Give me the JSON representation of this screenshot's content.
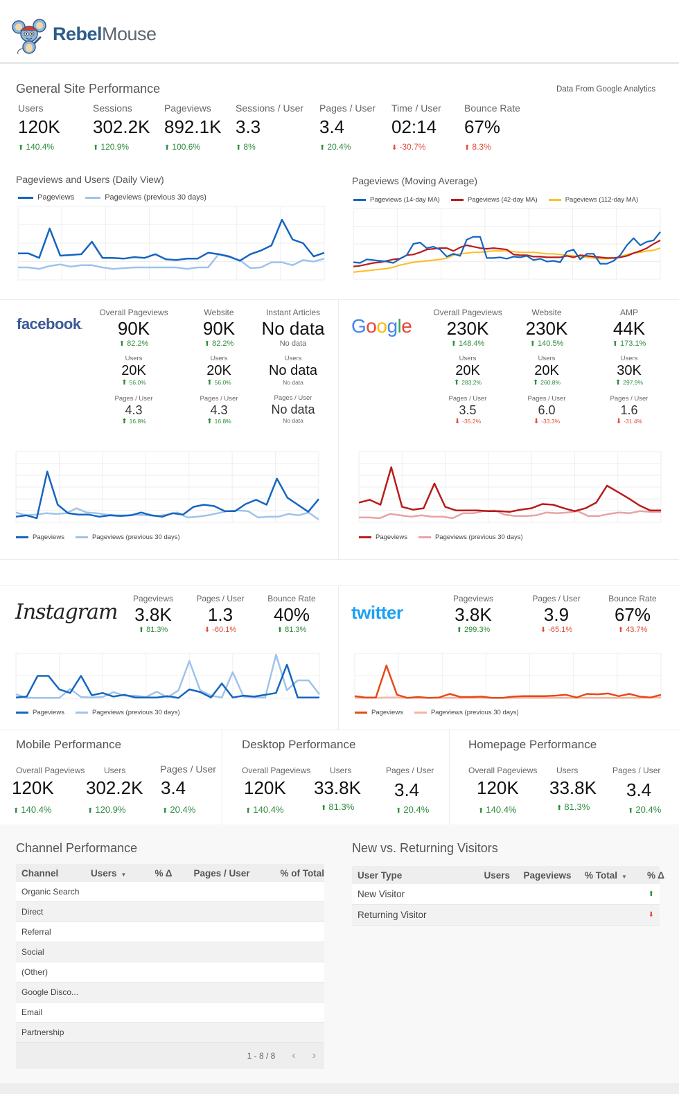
{
  "brand": {
    "name_bold": "Rebel",
    "name_light": "Mouse"
  },
  "general": {
    "title": "General Site Performance",
    "source_note": "Data From Google Analytics",
    "kpis": [
      {
        "label": "Users",
        "value": "120K",
        "delta": "140.4%",
        "dir": "up",
        "tone": "good"
      },
      {
        "label": "Sessions",
        "value": "302.2K",
        "delta": "120.9%",
        "dir": "up",
        "tone": "good"
      },
      {
        "label": "Pageviews",
        "value": "892.1K",
        "delta": "100.6%",
        "dir": "up",
        "tone": "good"
      },
      {
        "label": "Sessions / User",
        "value": "3.3",
        "delta": "8%",
        "dir": "up",
        "tone": "good"
      },
      {
        "label": "Pages / User",
        "value": "3.4",
        "delta": "20.4%",
        "dir": "up",
        "tone": "good"
      },
      {
        "label": "Time / User",
        "value": "02:14",
        "delta": "-30.7%",
        "dir": "down",
        "tone": "bad"
      },
      {
        "label": "Bounce Rate",
        "value": "67%",
        "delta": "8.3%",
        "dir": "up",
        "tone": "bad"
      }
    ]
  },
  "colors": {
    "pv_blue": "#1565c0",
    "pv_blue_prev": "#9fc3ea",
    "ma14": "#1565c0",
    "ma42": "#b71c1c",
    "ma112": "#fbc02d",
    "google_red": "#b71c1c",
    "google_red_prev": "#e8a3a3",
    "twitter_orange": "#e64a19",
    "twitter_orange_prev": "#f5b5a0",
    "good": "#2e8b3c",
    "bad": "#e24b3a"
  },
  "chart_data": [
    {
      "id": "daily",
      "type": "line",
      "title": "Pageviews  and Users (Daily View)",
      "legend": "top-left",
      "grid": true,
      "ylim": [
        0,
        100
      ],
      "series": [
        {
          "name": "Pageviews",
          "color_key": "pv_blue",
          "values": [
            36,
            36,
            30,
            70,
            33,
            34,
            35,
            52,
            30,
            30,
            29,
            31,
            30,
            35,
            28,
            27,
            29,
            29,
            37,
            35,
            32,
            26,
            35,
            40,
            47,
            82,
            55,
            50,
            32,
            37
          ]
        },
        {
          "name": "Pageviews (previous 30 days)",
          "color_key": "pv_blue_prev",
          "values": [
            17,
            17,
            15,
            19,
            21,
            18,
            20,
            20,
            17,
            15,
            16,
            17,
            17,
            17,
            17,
            17,
            15,
            17,
            17,
            35,
            31,
            27,
            16,
            17,
            24,
            24,
            20,
            27,
            25,
            29
          ]
        }
      ]
    },
    {
      "id": "moving-average",
      "type": "line",
      "title": "Pageviews (Moving Average)",
      "legend": "top-left",
      "grid": true,
      "ylim": [
        0,
        100
      ],
      "series": [
        {
          "name": "Pageviews (14-day MA)",
          "color_key": "ma14",
          "values": [
            24,
            23,
            28,
            27,
            26,
            25,
            23,
            29,
            34,
            50,
            52,
            44,
            46,
            42,
            32,
            36,
            33,
            56,
            60,
            60,
            30,
            30,
            31,
            29,
            32,
            31,
            33,
            27,
            29,
            25,
            26,
            24,
            39,
            42,
            28,
            36,
            36,
            22,
            22,
            26,
            34,
            48,
            58,
            48,
            53,
            55,
            67
          ]
        },
        {
          "name": "Pageviews (42-day MA)",
          "color_key": "ma42",
          "values": [
            18,
            19,
            21,
            23,
            24,
            26,
            28,
            29,
            34,
            35,
            38,
            42,
            43,
            44,
            44,
            40,
            45,
            48,
            46,
            44,
            43,
            44,
            43,
            42,
            35,
            34,
            34,
            32,
            32,
            31,
            31,
            31,
            33,
            31,
            34,
            33,
            32,
            31,
            30,
            30,
            31,
            33,
            37,
            40,
            44,
            50,
            55
          ]
        },
        {
          "name": "Pageviews (112-day MA)",
          "color_key": "ma112",
          "values": [
            10,
            11,
            12,
            13,
            14,
            15,
            17,
            20,
            22,
            24,
            25,
            26,
            27,
            28,
            30,
            34,
            36,
            37,
            38,
            38,
            39,
            40,
            40,
            40,
            39,
            38,
            38,
            38,
            37,
            36,
            36,
            35,
            34,
            33,
            32,
            31,
            30,
            29,
            29,
            30,
            32,
            35,
            37,
            38,
            40,
            41,
            44
          ]
        }
      ]
    },
    {
      "id": "facebook",
      "type": "line",
      "legend": "bottom-left",
      "grid": true,
      "ylim": [
        0,
        100
      ],
      "series": [
        {
          "name": "Pageviews",
          "color_key": "pv_blue",
          "values": [
            8,
            10,
            6,
            72,
            25,
            13,
            11,
            11,
            8,
            10,
            9,
            10,
            14,
            10,
            8,
            13,
            11,
            22,
            25,
            23,
            16,
            16,
            26,
            32,
            25,
            62,
            35,
            25,
            15,
            33
          ]
        },
        {
          "name": "Pageviews (previous 30 days)",
          "color_key": "pv_blue_prev",
          "values": [
            14,
            10,
            11,
            13,
            12,
            13,
            20,
            14,
            13,
            11,
            10,
            10,
            11,
            10,
            9,
            11,
            14,
            7,
            8,
            10,
            13,
            16,
            17,
            16,
            7,
            8,
            8,
            12,
            10,
            14,
            4
          ]
        }
      ]
    },
    {
      "id": "google",
      "type": "line",
      "legend": "bottom-left",
      "grid": true,
      "ylim": [
        0,
        100
      ],
      "series": [
        {
          "name": "Pageviews",
          "color_key": "google_red",
          "values": [
            28,
            32,
            25,
            78,
            22,
            18,
            20,
            55,
            22,
            17,
            17,
            17,
            16,
            16,
            15,
            18,
            20,
            26,
            25,
            20,
            16,
            20,
            28,
            52,
            43,
            34,
            24,
            17,
            17
          ]
        },
        {
          "name": "Pageviews (previous 30 days)",
          "color_key": "google_red_prev",
          "values": [
            7,
            7,
            6,
            12,
            10,
            8,
            10,
            8,
            8,
            6,
            13,
            13,
            16,
            17,
            11,
            9,
            9,
            10,
            14,
            13,
            14,
            16,
            9,
            9,
            12,
            14,
            13,
            16,
            15,
            15
          ]
        }
      ]
    },
    {
      "id": "instagram",
      "type": "line",
      "title": "",
      "legend": "bottom-left",
      "grid": true,
      "ylim": [
        0,
        100
      ],
      "series": [
        {
          "name": "Pageviews",
          "color_key": "pv_blue",
          "values": [
            2,
            4,
            50,
            50,
            20,
            12,
            50,
            7,
            12,
            4,
            8,
            2,
            2,
            2,
            5,
            1,
            20,
            14,
            2,
            33,
            2,
            6,
            4,
            8,
            12,
            75,
            2,
            2,
            2
          ]
        },
        {
          "name": "Pageviews (previous 30 days)",
          "color_key": "pv_blue_prev",
          "values": [
            9,
            1,
            1,
            1,
            1,
            21,
            3,
            2,
            3,
            14,
            6,
            6,
            3,
            15,
            2,
            18,
            83,
            18,
            6,
            2,
            58,
            4,
            2,
            2,
            97,
            18,
            40,
            40,
            9
          ]
        }
      ]
    },
    {
      "id": "twitter",
      "type": "line",
      "legend": "bottom-left",
      "grid": true,
      "ylim": [
        0,
        100
      ],
      "series": [
        {
          "name": "Pageviews",
          "color_key": "twitter_orange",
          "values": [
            5,
            2,
            2,
            73,
            8,
            1,
            3,
            1,
            2,
            10,
            3,
            3,
            4,
            1,
            1,
            4,
            5,
            5,
            5,
            6,
            8,
            2,
            10,
            9,
            11,
            5,
            10,
            4,
            2,
            8
          ]
        },
        {
          "name": "Pageviews (previous 30 days)",
          "color_key": "twitter_orange_prev",
          "values": [
            1,
            1,
            1,
            2,
            2,
            1,
            1,
            1,
            1,
            1,
            1,
            1,
            1,
            1,
            1,
            1,
            1,
            1,
            1,
            1,
            1,
            1,
            1,
            1,
            1,
            1,
            1,
            1,
            2,
            2
          ]
        }
      ]
    }
  ],
  "facebook": {
    "brand": "facebook",
    "columns": [
      {
        "label": "Overall Pageviews",
        "value": "90K",
        "delta": "82.2%",
        "dir": "up",
        "tone": "good",
        "users_label": "Users",
        "users": "20K",
        "users_delta": "56.0%",
        "users_dir": "up",
        "users_tone": "good",
        "ppu_label": "Pages / User",
        "ppu": "4.3",
        "ppu_delta": "16.8%",
        "ppu_dir": "up",
        "ppu_tone": "good"
      },
      {
        "label": "Website",
        "value": "90K",
        "delta": "82.2%",
        "dir": "up",
        "tone": "good",
        "users_label": "Users",
        "users": "20K",
        "users_delta": "56.0%",
        "users_dir": "up",
        "users_tone": "good",
        "ppu_label": "Pages / User",
        "ppu": "4.3",
        "ppu_delta": "16.8%",
        "ppu_dir": "up",
        "ppu_tone": "good"
      },
      {
        "label": "Instant Articles",
        "value": "No data",
        "delta": "No data",
        "dir": "none",
        "tone": "none",
        "users_label": "Users",
        "users": "No data",
        "users_delta": "No data",
        "users_dir": "none",
        "users_tone": "none",
        "ppu_label": "Pages / User",
        "ppu": "No data",
        "ppu_delta": "No data",
        "ppu_dir": "none",
        "ppu_tone": "none"
      }
    ],
    "legend": [
      "Pageviews",
      "Pageviews (previous 30 days)"
    ]
  },
  "google": {
    "brand": "Google",
    "columns": [
      {
        "label": "Overall Pageviews",
        "value": "230K",
        "delta": "148.4%",
        "dir": "up",
        "tone": "good",
        "users_label": "Users",
        "users": "20K",
        "users_delta": "283.2%",
        "users_dir": "up",
        "users_tone": "good",
        "ppu_label": "Pages / User",
        "ppu": "3.5",
        "ppu_delta": "-35.2%",
        "ppu_dir": "down",
        "ppu_tone": "bad"
      },
      {
        "label": "Website",
        "value": "230K",
        "delta": "140.5%",
        "dir": "up",
        "tone": "good",
        "users_label": "Users",
        "users": "20K",
        "users_delta": "260.8%",
        "users_dir": "up",
        "users_tone": "good",
        "ppu_label": "Pages / User",
        "ppu": "6.0",
        "ppu_delta": "-33.3%",
        "ppu_dir": "down",
        "ppu_tone": "bad"
      },
      {
        "label": "AMP",
        "value": "44K",
        "delta": "173.1%",
        "dir": "up",
        "tone": "good",
        "users_label": "Users",
        "users": "30K",
        "users_delta": "297.9%",
        "users_dir": "up",
        "users_tone": "good",
        "ppu_label": "Pages / User",
        "ppu": "1.6",
        "ppu_delta": "-31.4%",
        "ppu_dir": "down",
        "ppu_tone": "bad"
      }
    ],
    "legend": [
      "Pageviews",
      "Pageviews (previous 30 days)"
    ]
  },
  "instagram": {
    "brand": "Instagram",
    "kpis": [
      {
        "label": "Pageviews",
        "value": "3.8K",
        "delta": "81.3%",
        "dir": "up",
        "tone": "good"
      },
      {
        "label": "Pages / User",
        "value": "1.3",
        "delta": "-60.1%",
        "dir": "down",
        "tone": "bad"
      },
      {
        "label": "Bounce Rate",
        "value": "40%",
        "delta": "81.3%",
        "dir": "up",
        "tone": "good"
      }
    ],
    "legend": [
      "Pageviews",
      "Pageviews (previous 30 days)"
    ]
  },
  "twitter": {
    "brand": "twitter",
    "kpis": [
      {
        "label": "Pageviews",
        "value": "3.8K",
        "delta": "299.3%",
        "dir": "up",
        "tone": "good"
      },
      {
        "label": "Pages / User",
        "value": "3.9",
        "delta": "-65.1%",
        "dir": "down",
        "tone": "bad"
      },
      {
        "label": "Bounce Rate",
        "value": "67%",
        "delta": "43.7%",
        "dir": "up",
        "tone": "bad"
      }
    ],
    "legend": [
      "Pageviews",
      "Pageviews (previous 30 days)"
    ]
  },
  "mobile": {
    "title": "Mobile Performance",
    "kpis": [
      {
        "label": "Overall Pageviews",
        "value": "120K",
        "delta": "140.4%"
      },
      {
        "label": "Users",
        "value": "302.2K",
        "delta": "120.9%"
      },
      {
        "label": "Pages / User",
        "value": "3.4",
        "delta": "20.4%"
      }
    ]
  },
  "desktop": {
    "title": "Desktop Performance",
    "kpis": [
      {
        "label": "Overall Pageviews",
        "value": "120K",
        "delta": "140.4%"
      },
      {
        "label": "Users",
        "value": "33.8K",
        "delta": "81.3%"
      },
      {
        "label": "Pages / User",
        "value": "3.4",
        "delta": "20.4%"
      }
    ]
  },
  "homepage": {
    "title": "Homepage Performance",
    "kpis": [
      {
        "label": "Overall Pageviews",
        "value": "120K",
        "delta": "140.4%"
      },
      {
        "label": "Users",
        "value": "33.8K",
        "delta": "81.3%"
      },
      {
        "label": "Pages / User",
        "value": "3.4",
        "delta": "20.4%"
      }
    ]
  },
  "channel_table": {
    "title": "Channel Performance",
    "columns": [
      "Channel",
      "Users",
      "% Δ",
      "Pages / User",
      "% of Total"
    ],
    "sorted_column": "Users",
    "rows": [
      "Organic Search",
      "Direct",
      "Referral",
      "Social",
      "(Other)",
      "Google Disco...",
      "Email",
      "Partnership"
    ],
    "pagination": "1 - 8 / 8"
  },
  "visitor_table": {
    "title": "New vs. Returning Visitors",
    "columns": [
      "User Type",
      "Users",
      "Pageviews",
      "% Total",
      "% Δ"
    ],
    "sorted_column": "% Total",
    "rows": [
      {
        "type": "New Visitor",
        "delta_dir": "up"
      },
      {
        "type": "Returning Visitor",
        "delta_dir": "down"
      }
    ]
  }
}
